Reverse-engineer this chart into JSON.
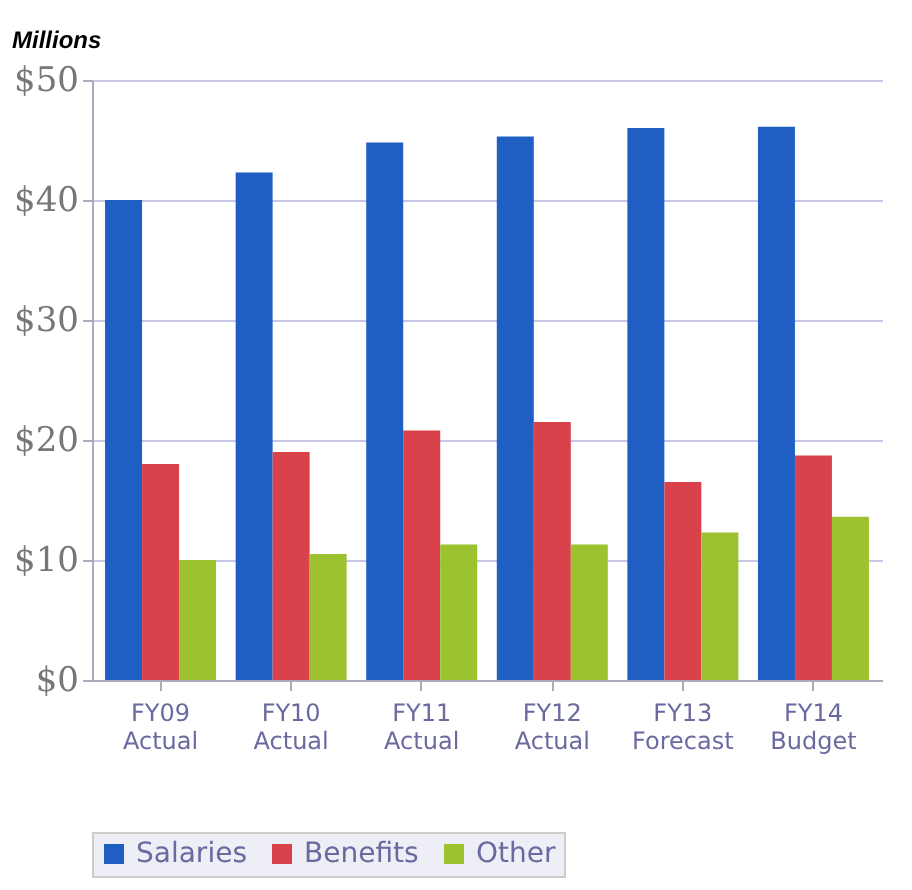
{
  "chart_data": {
    "type": "bar",
    "ylabel": "Millions",
    "categories": [
      "FY09\nActual",
      "FY10\nActual",
      "FY11\nActual",
      "FY12\nActual",
      "FY13\nForecast",
      "FY14\nBudget"
    ],
    "series": [
      {
        "name": "Salaries",
        "color": "#1f5fc4",
        "values": [
          40,
          42.3,
          44.8,
          45.3,
          46,
          46.1
        ]
      },
      {
        "name": "Benefits",
        "color": "#d9424b",
        "values": [
          18,
          19,
          20.8,
          21.5,
          16.5,
          18.7
        ]
      },
      {
        "name": "Other",
        "color": "#9cc230",
        "values": [
          10,
          10.5,
          11.3,
          11.3,
          12.3,
          13.6
        ]
      }
    ],
    "ylim": [
      0,
      50
    ],
    "yticks": [
      {
        "value": 0,
        "label": "$0"
      },
      {
        "value": 10,
        "label": "$10"
      },
      {
        "value": 20,
        "label": "$20"
      },
      {
        "value": 30,
        "label": "$30"
      },
      {
        "value": 40,
        "label": "$40"
      },
      {
        "value": 50,
        "label": "$50"
      }
    ],
    "grid": "y",
    "legend": "bottom"
  }
}
